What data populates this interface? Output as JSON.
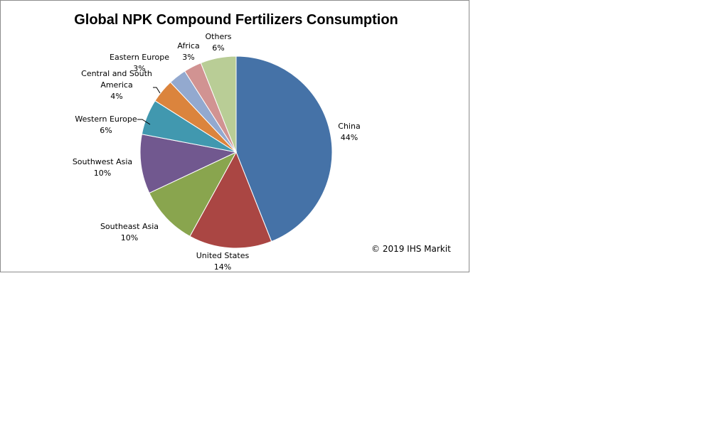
{
  "chart_data": {
    "type": "pie",
    "title": "Global NPK Compound Fertilizers Consumption",
    "slices": [
      {
        "label": "China",
        "value": 44,
        "color": "#4572A7"
      },
      {
        "label": "United States",
        "value": 14,
        "color": "#AA4643"
      },
      {
        "label": "Southeast Asia",
        "value": 10,
        "color": "#89A54E"
      },
      {
        "label": "Southwest Asia",
        "value": 10,
        "color": "#71588F"
      },
      {
        "label": "Western Europe",
        "value": 6,
        "color": "#4198AF"
      },
      {
        "label": "Central and South America",
        "value": 4,
        "color": "#DB843D"
      },
      {
        "label": "Eastern Europe",
        "value": 3,
        "color": "#93A9CF"
      },
      {
        "label": "Africa",
        "value": 3,
        "color": "#D19392"
      },
      {
        "label": "Others",
        "value": 6,
        "color": "#B9CD96"
      }
    ],
    "value_suffix": "%",
    "legend": "none",
    "start": "top",
    "direction": "clockwise"
  },
  "annotations": {
    "copyright": "© 2019  IHS Markit"
  }
}
